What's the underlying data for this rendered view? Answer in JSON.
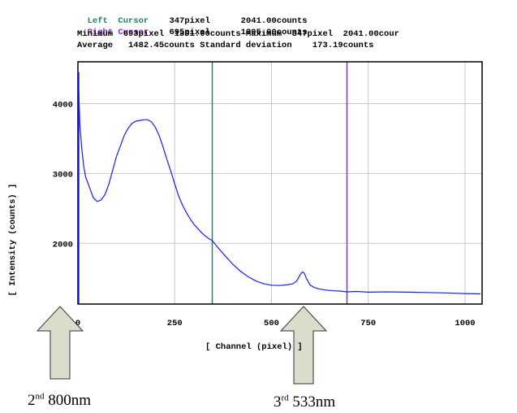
{
  "header": {
    "left_cursor_label": "Left  Cursor",
    "left_cursor_value": "347pixel      2041.00counts",
    "right_cursor_label": "Right Cursor",
    "right_cursor_value": "695pixel      1305.00counts",
    "minmax_line": "Minimum  693pixel  1301.00counts Maximum  347pixel  2041.00cour",
    "average_line": "Average   1482.45counts Standard deviation    173.19counts"
  },
  "colors": {
    "left_cursor": "#1e8a55",
    "right_cursor": "#8b2bd6",
    "spectrum": "#1a1aff",
    "arrow_fill": "#dcdccc"
  },
  "chart_data": {
    "type": "line",
    "xlabel": "[ Channel (pixel) ]",
    "ylabel": "[ Intensity (counts) ]",
    "xlim": [
      0,
      1044
    ],
    "ylim": [
      1130,
      4600
    ],
    "xticks": [
      0,
      250,
      500,
      750,
      1000
    ],
    "xtick_labels": [
      "0",
      "250",
      "500",
      "750",
      "1000"
    ],
    "yticks": [
      2000,
      3000,
      4000
    ],
    "ytick_labels": [
      "2000",
      "3000",
      "4000"
    ],
    "grid": true,
    "cursors": [
      {
        "name": "Left Cursor",
        "x": 347,
        "color": "#1e8a55"
      },
      {
        "name": "Right Cursor",
        "x": 695,
        "color": "#8b2bd6"
      }
    ],
    "series": [
      {
        "x": [
          0,
          2,
          5,
          10,
          15,
          20,
          30,
          40,
          50,
          60,
          70,
          80,
          90,
          100,
          110,
          120,
          130,
          140,
          150,
          160,
          170,
          180,
          190,
          200,
          210,
          220,
          230,
          240,
          250,
          260,
          270,
          280,
          290,
          300,
          310,
          320,
          330,
          340,
          347,
          360,
          380,
          400,
          420,
          440,
          460,
          480,
          500,
          520,
          540,
          555,
          565,
          575,
          580,
          585,
          590,
          600,
          610,
          620,
          640,
          660,
          680,
          695,
          720,
          750,
          800,
          850,
          900,
          950,
          1000,
          1040
        ],
        "y": [
          4350,
          4200,
          3700,
          3350,
          3100,
          2950,
          2800,
          2650,
          2600,
          2620,
          2700,
          2850,
          3050,
          3250,
          3400,
          3550,
          3650,
          3720,
          3750,
          3760,
          3770,
          3770,
          3740,
          3660,
          3540,
          3380,
          3200,
          3030,
          2850,
          2680,
          2550,
          2440,
          2350,
          2270,
          2210,
          2150,
          2100,
          2060,
          2041,
          1950,
          1820,
          1700,
          1600,
          1520,
          1460,
          1420,
          1400,
          1395,
          1405,
          1420,
          1460,
          1560,
          1590,
          1570,
          1500,
          1400,
          1370,
          1350,
          1330,
          1320,
          1315,
          1305,
          1310,
          1300,
          1305,
          1300,
          1295,
          1290,
          1280,
          1275
        ]
      }
    ]
  },
  "annotations": [
    {
      "label": "2nd 800nm",
      "ordinal": "2",
      "suffix": "nd",
      "text": " 800nm"
    },
    {
      "label": "3rd 533nm",
      "ordinal": "3",
      "suffix": "rd",
      "text": " 533nm"
    }
  ]
}
